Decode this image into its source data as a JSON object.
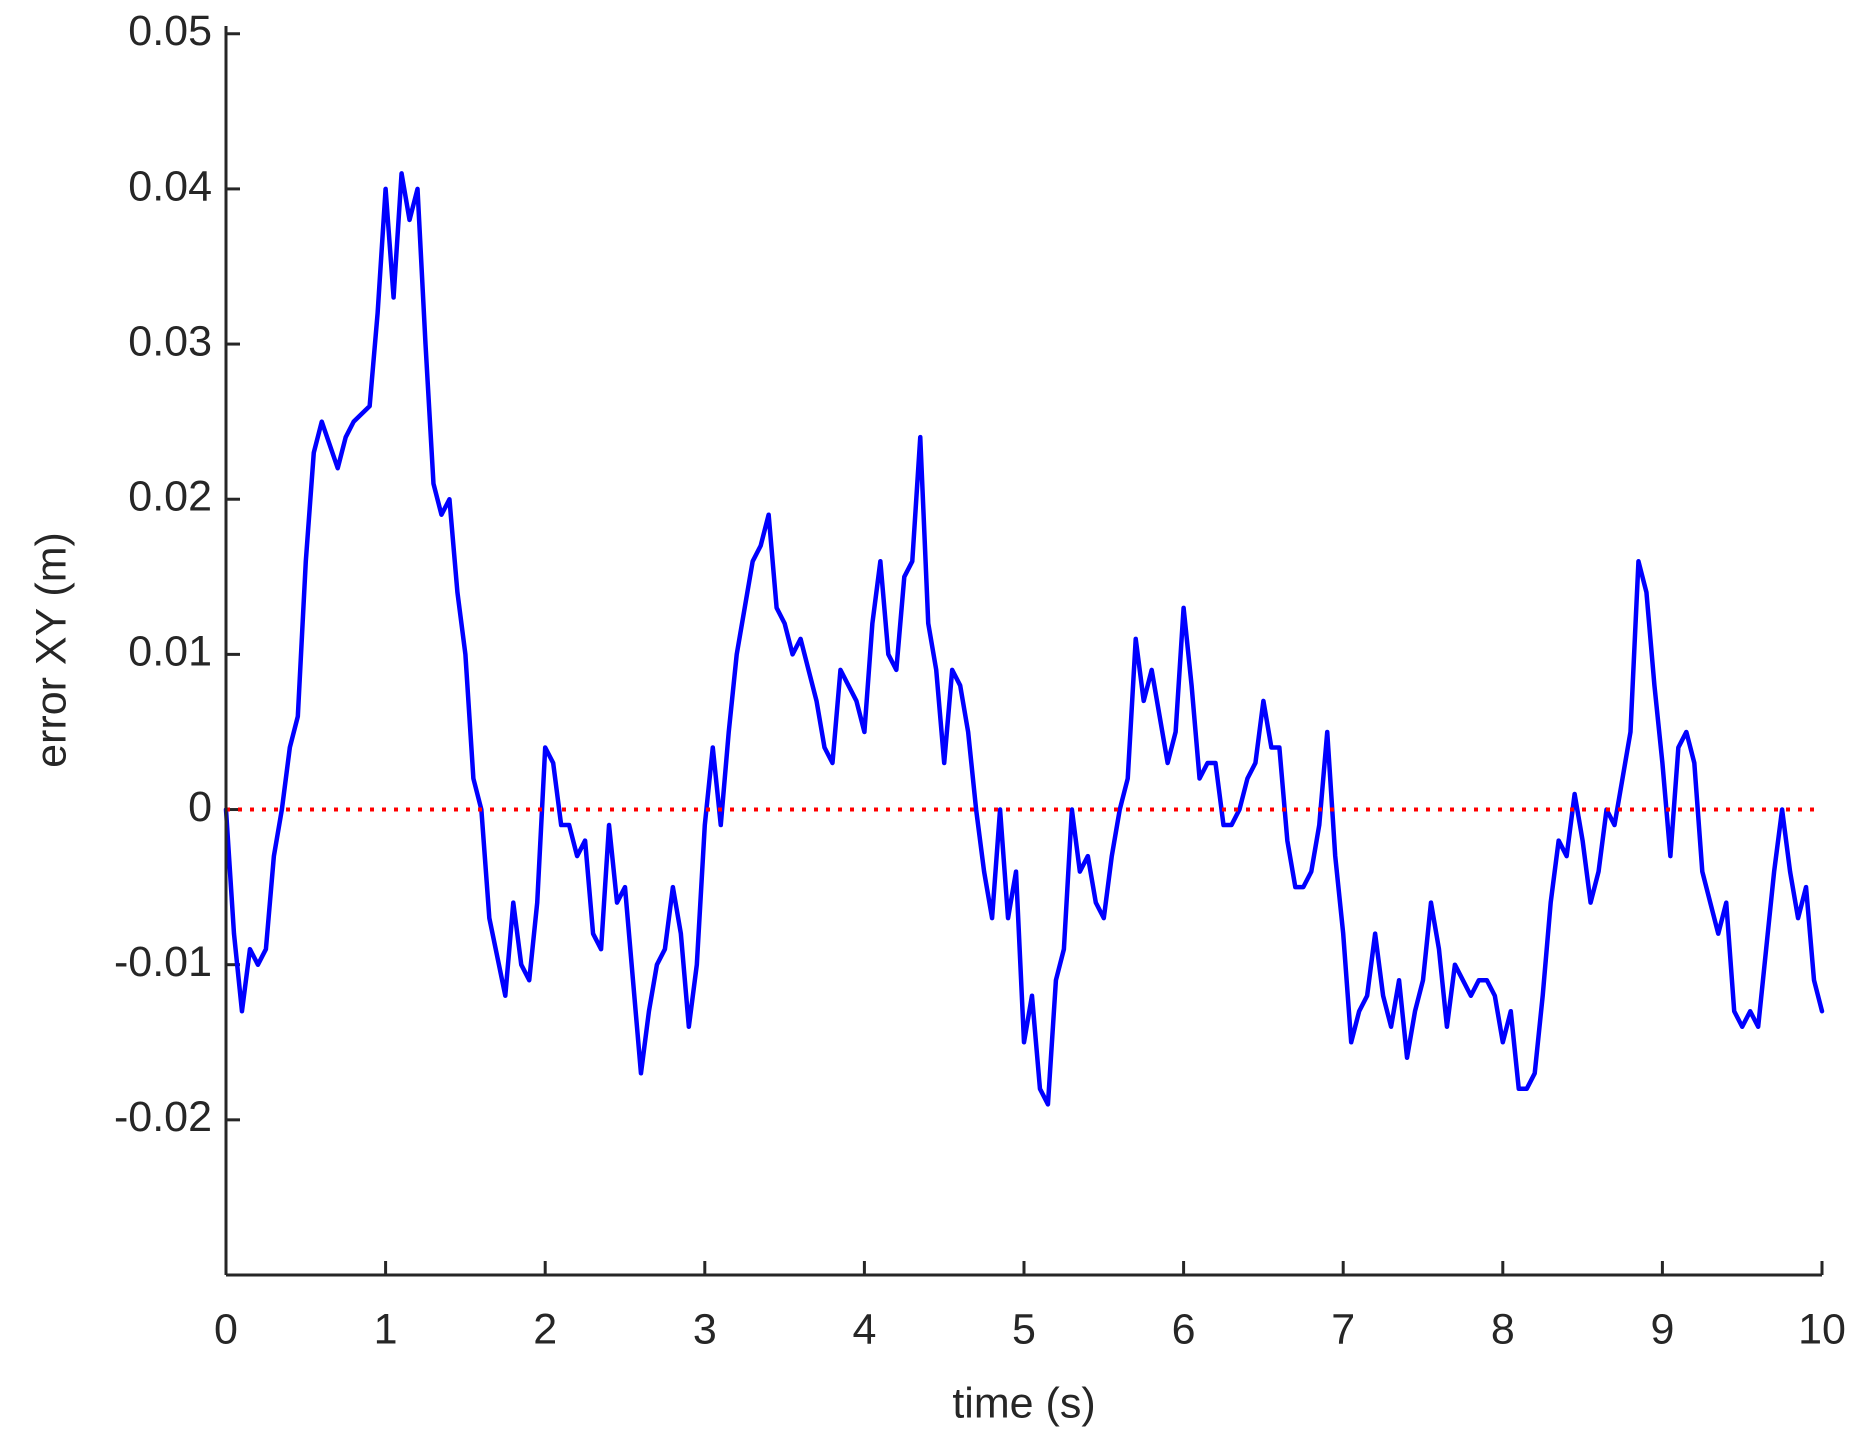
{
  "chart_data": {
    "type": "line",
    "xlabel": "time (s)",
    "ylabel": "error XY (m)",
    "xlim": [
      0,
      10
    ],
    "xticks": [
      0,
      1,
      2,
      3,
      4,
      5,
      6,
      7,
      8,
      9,
      10
    ],
    "ylim": [
      -0.03,
      0.0505
    ],
    "yticks": [
      -0.02,
      -0.01,
      0,
      0.01,
      0.02,
      0.03,
      0.04,
      0.05
    ],
    "grid": false,
    "series": [
      {
        "color": "#0000ff",
        "style": "solid",
        "x": [
          0,
          0.05,
          0.1,
          0.15,
          0.2,
          0.25,
          0.3,
          0.35,
          0.4,
          0.45,
          0.5,
          0.55,
          0.6,
          0.7,
          0.75,
          0.8,
          0.9,
          0.95,
          1,
          1.05,
          1.1,
          1.15,
          1.2,
          1.25,
          1.3,
          1.35,
          1.4,
          1.45,
          1.5,
          1.55,
          1.6,
          1.65,
          1.75,
          1.8,
          1.85,
          1.9,
          1.95,
          2,
          2.05,
          2.1,
          2.15,
          2.2,
          2.25,
          2.3,
          2.35,
          2.4,
          2.45,
          2.5,
          2.55,
          2.6,
          2.65,
          2.7,
          2.75,
          2.8,
          2.85,
          2.9,
          2.95,
          3,
          3.05,
          3.1,
          3.15,
          3.2,
          3.25,
          3.3,
          3.35,
          3.4,
          3.45,
          3.5,
          3.55,
          3.6,
          3.65,
          3.7,
          3.75,
          3.8,
          3.85,
          3.9,
          3.95,
          4,
          4.05,
          4.1,
          4.15,
          4.2,
          4.25,
          4.3,
          4.35,
          4.4,
          4.45,
          4.5,
          4.55,
          4.6,
          4.65,
          4.7,
          4.75,
          4.8,
          4.85,
          4.9,
          4.95,
          5,
          5.05,
          5.1,
          5.15,
          5.2,
          5.25,
          5.3,
          5.35,
          5.4,
          5.45,
          5.5,
          5.55,
          5.6,
          5.65,
          5.7,
          5.75,
          5.8,
          5.85,
          5.9,
          5.95,
          6,
          6.05,
          6.1,
          6.15,
          6.2,
          6.25,
          6.3,
          6.35,
          6.4,
          6.45,
          6.5,
          6.55,
          6.6,
          6.65,
          6.7,
          6.75,
          6.8,
          6.85,
          6.9,
          6.95,
          7,
          7.05,
          7.1,
          7.15,
          7.2,
          7.25,
          7.3,
          7.35,
          7.4,
          7.45,
          7.5,
          7.55,
          7.6,
          7.65,
          7.7,
          7.75,
          7.8,
          7.85,
          7.9,
          7.95,
          8,
          8.05,
          8.1,
          8.15,
          8.2,
          8.25,
          8.3,
          8.35,
          8.4,
          8.45,
          8.5,
          8.55,
          8.6,
          8.65,
          8.7,
          8.75,
          8.8,
          8.85,
          8.9,
          8.95,
          9,
          9.05,
          9.1,
          9.15,
          9.2,
          9.25,
          9.3,
          9.35,
          9.4,
          9.45,
          9.5,
          9.55,
          9.6,
          9.65,
          9.7,
          9.75,
          9.8,
          9.85,
          9.9,
          9.95,
          10
        ],
        "values": [
          0,
          -0.008,
          -0.013,
          -0.009,
          -0.01,
          -0.009,
          -0.003,
          0,
          0.004,
          0.006,
          0.016,
          0.023,
          0.025,
          0.022,
          0.024,
          0.025,
          0.026,
          0.032,
          0.04,
          0.033,
          0.041,
          0.038,
          0.04,
          0.03,
          0.021,
          0.019,
          0.02,
          0.014,
          0.01,
          0.002,
          0,
          -0.007,
          -0.012,
          -0.006,
          -0.01,
          -0.011,
          -0.006,
          0.004,
          0.003,
          -0.001,
          -0.001,
          -0.003,
          -0.002,
          -0.008,
          -0.009,
          -0.001,
          -0.006,
          -0.005,
          -0.011,
          -0.017,
          -0.013,
          -0.01,
          -0.009,
          -0.005,
          -0.008,
          -0.014,
          -0.01,
          -0.001,
          0.004,
          -0.001,
          0.005,
          0.01,
          0.013,
          0.016,
          0.017,
          0.019,
          0.013,
          0.012,
          0.01,
          0.011,
          0.009,
          0.007,
          0.004,
          0.003,
          0.009,
          0.008,
          0.007,
          0.005,
          0.012,
          0.016,
          0.01,
          0.009,
          0.015,
          0.016,
          0.024,
          0.012,
          0.009,
          0.003,
          0.009,
          0.008,
          0.005,
          0,
          -0.004,
          -0.007,
          0,
          -0.007,
          -0.004,
          -0.015,
          -0.012,
          -0.018,
          -0.019,
          -0.011,
          -0.009,
          0,
          -0.004,
          -0.003,
          -0.006,
          -0.007,
          -0.003,
          0,
          0.002,
          0.011,
          0.007,
          0.009,
          0.006,
          0.003,
          0.005,
          0.013,
          0.008,
          0.002,
          0.003,
          0.003,
          -0.001,
          -0.001,
          0,
          0.002,
          0.003,
          0.007,
          0.004,
          0.004,
          -0.002,
          -0.005,
          -0.005,
          -0.004,
          -0.001,
          0.005,
          -0.003,
          -0.008,
          -0.015,
          -0.013,
          -0.012,
          -0.008,
          -0.012,
          -0.014,
          -0.011,
          -0.016,
          -0.013,
          -0.011,
          -0.006,
          -0.009,
          -0.014,
          -0.01,
          -0.011,
          -0.012,
          -0.011,
          -0.011,
          -0.012,
          -0.015,
          -0.013,
          -0.018,
          -0.018,
          -0.017,
          -0.012,
          -0.006,
          -0.002,
          -0.003,
          0.001,
          -0.002,
          -0.006,
          -0.004,
          0,
          -0.001,
          0.002,
          0.005,
          0.016,
          0.014,
          0.008,
          0.003,
          -0.003,
          0.004,
          0.005,
          0.003,
          -0.004,
          -0.006,
          -0.008,
          -0.006,
          -0.013,
          -0.014,
          -0.013,
          -0.014,
          -0.009,
          -0.004,
          0,
          -0.004,
          -0.007,
          -0.005,
          -0.011,
          -0.013
        ]
      },
      {
        "color": "#ff0000",
        "style": "dotted",
        "x": [
          0,
          10
        ],
        "values": [
          0,
          0
        ]
      }
    ]
  }
}
